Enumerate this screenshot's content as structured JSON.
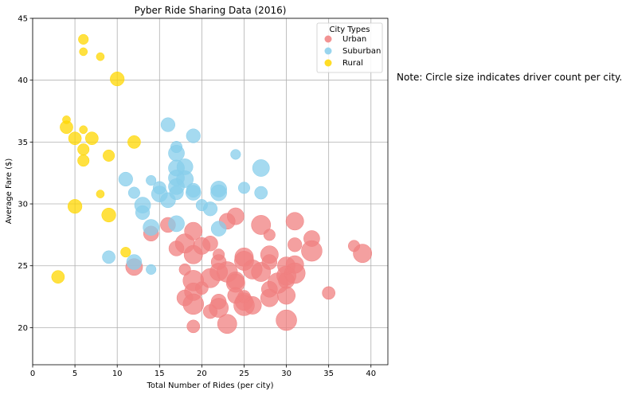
{
  "chart_data": {
    "type": "scatter",
    "title": "Pyber Ride Sharing Data (2016)",
    "xlabel": "Total Number of Rides (per city)",
    "ylabel": "Average Fare ($)",
    "xlim": [
      0,
      42
    ],
    "ylim": [
      17,
      45
    ],
    "xticks": [
      0,
      5,
      10,
      15,
      20,
      25,
      30,
      35,
      40
    ],
    "yticks": [
      20,
      25,
      30,
      35,
      40,
      45
    ],
    "grid": true,
    "legend_title": "City Types",
    "legend_placement": "top-right",
    "note": "Note: Circle size indicates driver count per city.",
    "series": [
      {
        "name": "Urban",
        "color": "#f08080",
        "points": [
          [
            12,
            24.9,
            8
          ],
          [
            14,
            27.6,
            6
          ],
          [
            16,
            28.3,
            6
          ],
          [
            17,
            26.4,
            6
          ],
          [
            18,
            26.8,
            11
          ],
          [
            19,
            27.8,
            9
          ],
          [
            18,
            24.7,
            3
          ],
          [
            19,
            25.9,
            10
          ],
          [
            18,
            22.4,
            7
          ],
          [
            19,
            23.8,
            13
          ],
          [
            19,
            22.9,
            9
          ],
          [
            19,
            21.9,
            13
          ],
          [
            19,
            20.1,
            4
          ],
          [
            20,
            23.2,
            4
          ],
          [
            20,
            26.6,
            8
          ],
          [
            21,
            26.8,
            6
          ],
          [
            21,
            24,
            11
          ],
          [
            21,
            21.3,
            5
          ],
          [
            22,
            25.9,
            3
          ],
          [
            22,
            25.3,
            6
          ],
          [
            22,
            24.5,
            9
          ],
          [
            22,
            22.1,
            6
          ],
          [
            22,
            21.6,
            11
          ],
          [
            23,
            28.6,
            7
          ],
          [
            23,
            24.5,
            13
          ],
          [
            23,
            20.3,
            11
          ],
          [
            24,
            29,
            8
          ],
          [
            24,
            23.8,
            9
          ],
          [
            24,
            23.6,
            10
          ],
          [
            24,
            22.6,
            7
          ],
          [
            25,
            25.7,
            10
          ],
          [
            25,
            25.4,
            11
          ],
          [
            25,
            22.1,
            9
          ],
          [
            25,
            22.5,
            4
          ],
          [
            25,
            21.8,
            13
          ],
          [
            26,
            21.8,
            9
          ],
          [
            26,
            24.7,
            11
          ],
          [
            27,
            28.3,
            11
          ],
          [
            27,
            24.5,
            11
          ],
          [
            28,
            27.5,
            3
          ],
          [
            28,
            25.9,
            9
          ],
          [
            28,
            25.3,
            6
          ],
          [
            28,
            23.1,
            7
          ],
          [
            28,
            22.4,
            9
          ],
          [
            29,
            23.6,
            13
          ],
          [
            30,
            25,
            9
          ],
          [
            30,
            24.2,
            11
          ],
          [
            30,
            23.8,
            7
          ],
          [
            30,
            22.6,
            9
          ],
          [
            30,
            20.6,
            13
          ],
          [
            31,
            28.6,
            9
          ],
          [
            31,
            26.7,
            5
          ],
          [
            31,
            25.1,
            9
          ],
          [
            31,
            24.4,
            13
          ],
          [
            33,
            27.2,
            7
          ],
          [
            33,
            26.2,
            13
          ],
          [
            35,
            22.8,
            4
          ],
          [
            38,
            26.6,
            3
          ],
          [
            39,
            26,
            10
          ]
        ]
      },
      {
        "name": "Suburban",
        "color": "#87ceeb",
        "points": [
          [
            9,
            25.7,
            4
          ],
          [
            11,
            32,
            5
          ],
          [
            12,
            30.9,
            3
          ],
          [
            12,
            25.3,
            6
          ],
          [
            13,
            29.9,
            7
          ],
          [
            13,
            29.3,
            5
          ],
          [
            14,
            28.1,
            7
          ],
          [
            14,
            31.9,
            2
          ],
          [
            14,
            24.7,
            2
          ],
          [
            15,
            31.3,
            4
          ],
          [
            15,
            30.8,
            7
          ],
          [
            16,
            36.4,
            5
          ],
          [
            16,
            30.3,
            6
          ],
          [
            17,
            34.6,
            3
          ],
          [
            17,
            34.1,
            7
          ],
          [
            17,
            32.9,
            7
          ],
          [
            17,
            32.1,
            7
          ],
          [
            17,
            31.4,
            7
          ],
          [
            17,
            30.9,
            5
          ],
          [
            17,
            28.4,
            7
          ],
          [
            18,
            33,
            7
          ],
          [
            18,
            32,
            8
          ],
          [
            19,
            35.5,
            5
          ],
          [
            19,
            31.1,
            5
          ],
          [
            19,
            30.9,
            6
          ],
          [
            20,
            29.9,
            3
          ],
          [
            21,
            29.6,
            5
          ],
          [
            22,
            31.2,
            7
          ],
          [
            22,
            30.9,
            7
          ],
          [
            22,
            28,
            6
          ],
          [
            24,
            34,
            2
          ],
          [
            25,
            31.3,
            3
          ],
          [
            27,
            32.9,
            8
          ],
          [
            27,
            30.9,
            4
          ]
        ]
      },
      {
        "name": "Rural",
        "color": "#ffd700",
        "points": [
          [
            3,
            24.1,
            4
          ],
          [
            4,
            36.8,
            1
          ],
          [
            4,
            36.2,
            4
          ],
          [
            5,
            35.3,
            4
          ],
          [
            5,
            29.8,
            5
          ],
          [
            6,
            43.3,
            2
          ],
          [
            6,
            42.3,
            1
          ],
          [
            6,
            36,
            1
          ],
          [
            6,
            34.4,
            3
          ],
          [
            6,
            33.5,
            3
          ],
          [
            7,
            35.3,
            4
          ],
          [
            8,
            41.9,
            1
          ],
          [
            8,
            30.8,
            1
          ],
          [
            9,
            33.9,
            3
          ],
          [
            9,
            29.1,
            5
          ],
          [
            10,
            40.1,
            5
          ],
          [
            11,
            26.1,
            2
          ],
          [
            12,
            35,
            4
          ]
        ]
      }
    ]
  }
}
